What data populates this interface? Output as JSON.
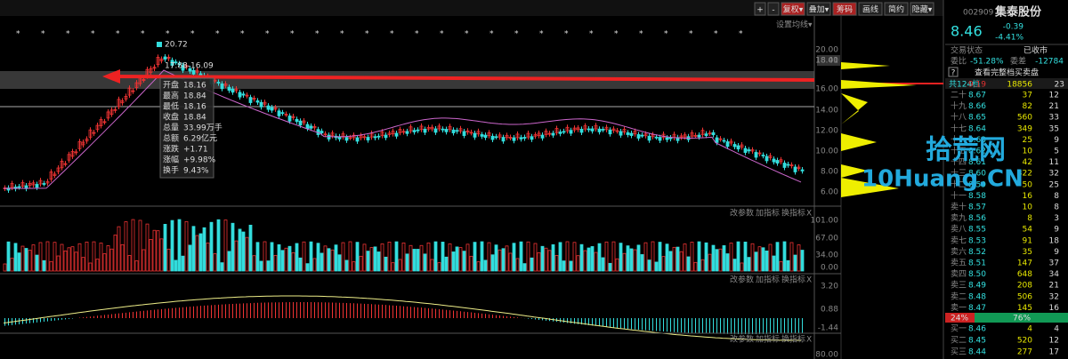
{
  "toolbar": {
    "buttons": [
      "+",
      "-",
      "复权▾",
      "叠加▾",
      "筹码",
      "画线",
      "简约",
      "隐藏▾"
    ]
  },
  "chart": {
    "peak_label": "20.72",
    "range_label": "17.88-16.09",
    "ma_setting": "设置均线▾",
    "tooltip": [
      {
        "label": "开盘",
        "value": "18.16"
      },
      {
        "label": "最高",
        "value": "18.84"
      },
      {
        "label": "最低",
        "value": "18.16"
      },
      {
        "label": "收盘",
        "value": "18.84"
      },
      {
        "label": "总量",
        "value": "33.99万手"
      },
      {
        "label": "总额",
        "value": "6.29亿元"
      },
      {
        "label": "涨跌",
        "value": "+1.71"
      },
      {
        "label": "涨幅",
        "value": "+9.98%"
      },
      {
        "label": "换手",
        "value": "9.43%"
      }
    ],
    "price_axis": [
      "20.00",
      "18.41",
      "18.00",
      "16.00",
      "14.00",
      "12.00",
      "10.00",
      "8.00",
      "6.00"
    ],
    "volume_axis": [
      "101.00",
      "67.00",
      "34.00",
      "0.00"
    ],
    "macd_axis": [
      "3.20",
      "0.88",
      "-1.44"
    ],
    "bottom_axis": [
      "80.00"
    ],
    "panel_buttons": [
      "改参数",
      "加指标",
      "换指标",
      "X"
    ]
  },
  "quote": {
    "code": "002909",
    "name": "集泰股份",
    "price": "8.46",
    "change": "-0.39",
    "pct": "-4.41%",
    "status_label": "交易状态",
    "status": "已收市",
    "ratio_label": "委比",
    "ratio": "-51.28%",
    "diff_label": "委差",
    "diff": "-12784",
    "help": "?",
    "full_book": "查看完整档买卖盘",
    "total": {
      "label": "共124档",
      "price": "9.19",
      "vol": "18856",
      "count": "23"
    },
    "asks": [
      {
        "label": "二十",
        "price": "8.67",
        "vol": "37",
        "count": "12"
      },
      {
        "label": "十九",
        "price": "8.66",
        "vol": "82",
        "count": "21"
      },
      {
        "label": "十八",
        "price": "8.65",
        "vol": "560",
        "count": "33"
      },
      {
        "label": "十七",
        "price": "8.64",
        "vol": "349",
        "count": "35"
      },
      {
        "label": "十六",
        "price": "8.63",
        "vol": "25",
        "count": "9"
      },
      {
        "label": "十五",
        "price": "8.62",
        "vol": "10",
        "count": "5"
      },
      {
        "label": "十四",
        "price": "8.61",
        "vol": "42",
        "count": "11"
      },
      {
        "label": "十三",
        "price": "8.60",
        "vol": "322",
        "count": "32"
      },
      {
        "label": "十二",
        "price": "8.59",
        "vol": "50",
        "count": "25"
      },
      {
        "label": "十一",
        "price": "8.58",
        "vol": "16",
        "count": "8"
      },
      {
        "label": "卖十",
        "price": "8.57",
        "vol": "10",
        "count": "8"
      },
      {
        "label": "卖九",
        "price": "8.56",
        "vol": "8",
        "count": "3"
      },
      {
        "label": "卖八",
        "price": "8.55",
        "vol": "54",
        "count": "9"
      },
      {
        "label": "卖七",
        "price": "8.53",
        "vol": "91",
        "count": "18"
      },
      {
        "label": "卖六",
        "price": "8.52",
        "vol": "35",
        "count": "9"
      },
      {
        "label": "卖五",
        "price": "8.51",
        "vol": "147",
        "count": "37"
      },
      {
        "label": "卖四",
        "price": "8.50",
        "vol": "648",
        "count": "34"
      },
      {
        "label": "卖三",
        "price": "8.49",
        "vol": "208",
        "count": "21"
      },
      {
        "label": "卖二",
        "price": "8.48",
        "vol": "506",
        "count": "32"
      },
      {
        "label": "卖一",
        "price": "8.47",
        "vol": "145",
        "count": "16"
      }
    ],
    "split": [
      "24%",
      "76%"
    ],
    "bids": [
      {
        "label": "买一",
        "price": "8.46",
        "vol": "4",
        "count": "4"
      },
      {
        "label": "买二",
        "price": "8.45",
        "vol": "520",
        "count": "12"
      },
      {
        "label": "买三",
        "price": "8.44",
        "vol": "277",
        "count": "17"
      }
    ]
  },
  "watermark": {
    "cn": "拾荒网",
    "en": "10Huang.CN"
  }
}
